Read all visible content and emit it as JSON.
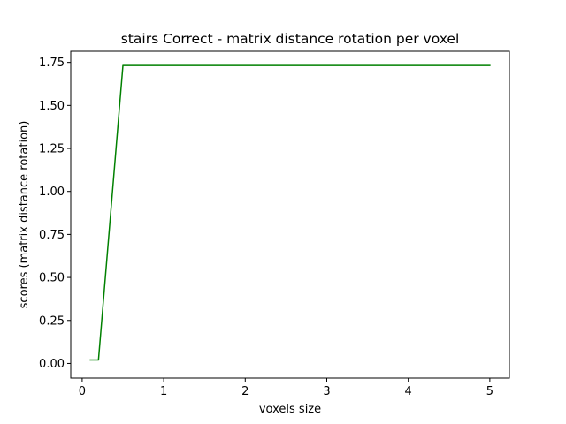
{
  "chart_data": {
    "type": "line",
    "title": "stairs Correct - matrix distance rotation per voxel",
    "xlabel": "voxels size",
    "ylabel": "scores (matrix distance rotation)",
    "xlim": [
      -0.14,
      5.24
    ],
    "ylim": [
      -0.085,
      1.815
    ],
    "xticks": [
      0,
      1,
      2,
      3,
      4,
      5
    ],
    "xtick_labels": [
      "0",
      "1",
      "2",
      "3",
      "4",
      "5"
    ],
    "yticks": [
      0.0,
      0.25,
      0.5,
      0.75,
      1.0,
      1.25,
      1.5,
      1.75
    ],
    "ytick_labels": [
      "0.00",
      "0.25",
      "0.50",
      "0.75",
      "1.00",
      "1.25",
      "1.50",
      "1.75"
    ],
    "grid": false,
    "legend": "none",
    "series": [
      {
        "color": "#008000",
        "x": [
          0.1,
          0.2,
          0.5,
          1.0,
          1.5,
          2.0,
          2.5,
          3.0,
          3.5,
          4.0,
          4.5,
          5.0
        ],
        "y": [
          0.02,
          0.02,
          1.732,
          1.732,
          1.732,
          1.732,
          1.732,
          1.732,
          1.732,
          1.732,
          1.732,
          1.732
        ]
      }
    ]
  }
}
